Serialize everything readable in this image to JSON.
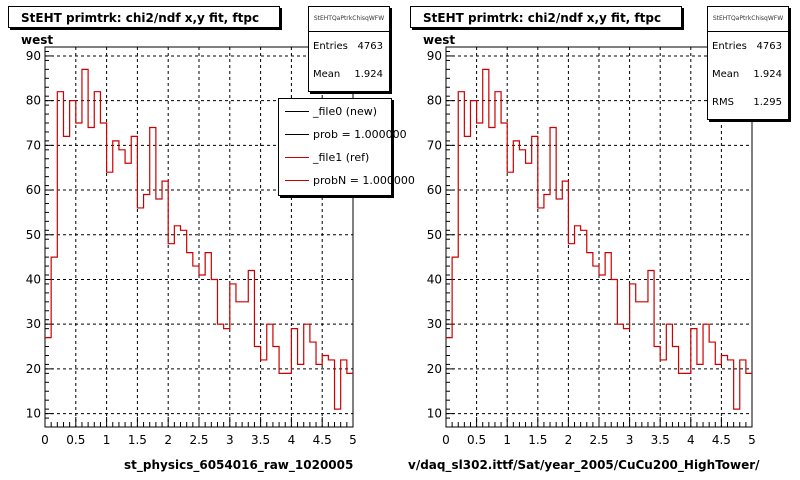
{
  "panels": [
    {
      "title": "StEHT primtrk: chi2/ndf x,y fit, ftpc west",
      "stats": {
        "header": "StEHTQaPtrkChisqWFW",
        "rows": [
          {
            "label": "Entries",
            "value": "4763"
          },
          {
            "label": "Mean",
            "value": "1.924"
          }
        ]
      },
      "legend": [
        {
          "label": "_file0 (new)",
          "color": "#000000"
        },
        {
          "label": "prob = 1.000000",
          "color": "#000000"
        },
        {
          "label": "_file1 (ref)",
          "color": "#cc0000"
        },
        {
          "label": "probN = 1.000000",
          "color": "#cc0000"
        }
      ],
      "footer": "st_physics_6054016_raw_1020005"
    },
    {
      "title": "StEHT primtrk: chi2/ndf x,y fit, ftpc west",
      "stats": {
        "header": "StEHTQaPtrkChisqWFW",
        "rows": [
          {
            "label": "Entries",
            "value": "4763"
          },
          {
            "label": "Mean",
            "value": "1.924"
          },
          {
            "label": "RMS",
            "value": "1.295"
          }
        ]
      },
      "footer": "v/daq_sl302.ittf/Sat/year_2005/CuCu200_HighTower/"
    }
  ],
  "chart_data": [
    {
      "type": "line",
      "title": "StEHT primtrk: chi2/ndf x,y fit, ftpc west",
      "xlabel": "",
      "ylabel": "",
      "xlim": [
        0,
        5
      ],
      "ylim": [
        7,
        92
      ],
      "xticks": [
        "0",
        "0.5",
        "1",
        "1.5",
        "2",
        "2.5",
        "3",
        "3.5",
        "4",
        "4.5",
        "5"
      ],
      "yticks": [
        "10",
        "20",
        "30",
        "40",
        "50",
        "60",
        "70",
        "80",
        "90"
      ],
      "grid": true,
      "legend_position": "top-right",
      "bin_edges": [
        0,
        0.1,
        0.2,
        0.3,
        0.4,
        0.5,
        0.6,
        0.7,
        0.8,
        0.9,
        1.0,
        1.1,
        1.2,
        1.3,
        1.4,
        1.5,
        1.6,
        1.7,
        1.8,
        1.9,
        2.0,
        2.1,
        2.2,
        2.3,
        2.4,
        2.5,
        2.6,
        2.7,
        2.8,
        2.9,
        3.0,
        3.1,
        3.2,
        3.3,
        3.4,
        3.5,
        3.6,
        3.7,
        3.8,
        3.9,
        4.0,
        4.1,
        4.2,
        4.3,
        4.4,
        4.5,
        4.6,
        4.7,
        4.8,
        4.9,
        5.0
      ],
      "series": [
        {
          "name": "_file1 (ref)",
          "color": "#cc0000",
          "values": [
            27,
            45,
            82,
            72,
            80,
            75,
            87,
            74,
            82,
            75,
            64,
            71,
            69,
            66,
            72,
            56,
            59,
            74,
            58,
            62,
            48,
            52,
            51,
            46,
            43,
            41,
            46,
            40,
            30,
            29,
            39,
            35,
            35,
            42,
            25,
            22,
            30,
            25,
            19,
            19,
            29,
            21,
            30,
            26,
            21,
            23,
            22,
            11,
            22,
            19
          ]
        }
      ]
    },
    {
      "type": "line",
      "title": "StEHT primtrk: chi2/ndf x,y fit, ftpc west",
      "xlabel": "",
      "ylabel": "",
      "xlim": [
        0,
        5
      ],
      "ylim": [
        7,
        92
      ],
      "xticks": [
        "0",
        "0.5",
        "1",
        "1.5",
        "2",
        "2.5",
        "3",
        "3.5",
        "4",
        "4.5",
        "5"
      ],
      "yticks": [
        "10",
        "20",
        "30",
        "40",
        "50",
        "60",
        "70",
        "80",
        "90"
      ],
      "grid": true,
      "bin_edges": [
        0,
        0.1,
        0.2,
        0.3,
        0.4,
        0.5,
        0.6,
        0.7,
        0.8,
        0.9,
        1.0,
        1.1,
        1.2,
        1.3,
        1.4,
        1.5,
        1.6,
        1.7,
        1.8,
        1.9,
        2.0,
        2.1,
        2.2,
        2.3,
        2.4,
        2.5,
        2.6,
        2.7,
        2.8,
        2.9,
        3.0,
        3.1,
        3.2,
        3.3,
        3.4,
        3.5,
        3.6,
        3.7,
        3.8,
        3.9,
        4.0,
        4.1,
        4.2,
        4.3,
        4.4,
        4.5,
        4.6,
        4.7,
        4.8,
        4.9,
        5.0
      ],
      "series": [
        {
          "name": "",
          "color": "#cc0000",
          "values": [
            27,
            45,
            82,
            72,
            80,
            75,
            87,
            74,
            82,
            75,
            64,
            71,
            69,
            66,
            72,
            56,
            59,
            74,
            58,
            62,
            48,
            52,
            51,
            46,
            43,
            41,
            46,
            40,
            30,
            29,
            39,
            35,
            35,
            42,
            25,
            22,
            30,
            25,
            19,
            19,
            29,
            21,
            30,
            26,
            21,
            23,
            22,
            11,
            22,
            19
          ]
        }
      ]
    }
  ]
}
